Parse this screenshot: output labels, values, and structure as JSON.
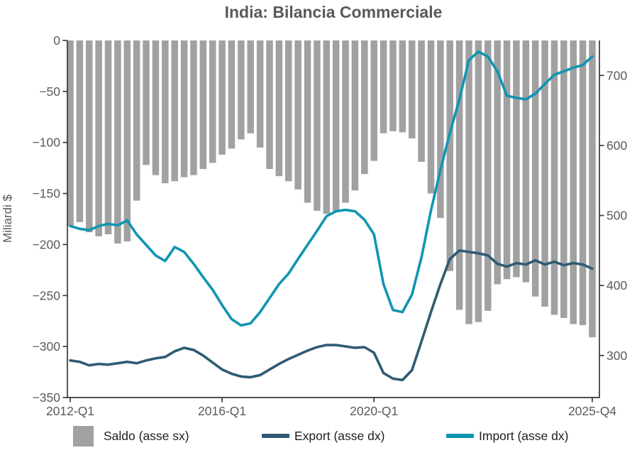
{
  "title": "India: Bilancia Commerciale",
  "colors": {
    "saldo": "#a1a1a1",
    "export": "#2e5b73",
    "import": "#1095b2",
    "axis": "#3a3a3a",
    "tick_text": "#5a5a5a",
    "title_text": "#595959",
    "legend_text": "#1f1f1f"
  },
  "y_left": {
    "label": "Miliardi $",
    "ticks": [
      0,
      -50,
      -100,
      -150,
      -200,
      -250,
      -300,
      -350
    ],
    "range": [
      0,
      -350
    ]
  },
  "y_right": {
    "ticks": [
      700,
      600,
      500,
      400,
      300
    ],
    "range": [
      750,
      240
    ]
  },
  "x_axis": {
    "ticks": [
      {
        "label": "2012-Q1",
        "q": 0
      },
      {
        "label": "2016-Q1",
        "q": 16
      },
      {
        "label": "2020-Q1",
        "q": 32
      },
      {
        "label": "2025-Q4",
        "q": 55
      }
    ]
  },
  "legend": {
    "saldo": "Saldo (asse sx)",
    "export": "Export (asse dx)",
    "import": "Import (asse dx)"
  },
  "chart_data": {
    "type": "bar+line",
    "title": "India: Bilancia Commerciale",
    "ylabel_left": "Miliardi $",
    "ylim_left": [
      -350,
      0
    ],
    "ylim_right": [
      240,
      750
    ],
    "legend_position": "bottom",
    "grid": false,
    "categories": [
      "2012-Q1",
      "2012-Q2",
      "2012-Q3",
      "2012-Q4",
      "2013-Q1",
      "2013-Q2",
      "2013-Q3",
      "2013-Q4",
      "2014-Q1",
      "2014-Q2",
      "2014-Q3",
      "2014-Q4",
      "2015-Q1",
      "2015-Q2",
      "2015-Q3",
      "2015-Q4",
      "2016-Q1",
      "2016-Q2",
      "2016-Q3",
      "2016-Q4",
      "2017-Q1",
      "2017-Q2",
      "2017-Q3",
      "2017-Q4",
      "2018-Q1",
      "2018-Q2",
      "2018-Q3",
      "2018-Q4",
      "2019-Q1",
      "2019-Q2",
      "2019-Q3",
      "2019-Q4",
      "2020-Q1",
      "2020-Q2",
      "2020-Q3",
      "2020-Q4",
      "2021-Q1",
      "2021-Q2",
      "2021-Q3",
      "2021-Q4",
      "2022-Q1",
      "2022-Q2",
      "2022-Q3",
      "2022-Q4",
      "2023-Q1",
      "2023-Q2",
      "2023-Q3",
      "2023-Q4",
      "2024-Q1",
      "2024-Q2",
      "2024-Q3",
      "2024-Q4",
      "2025-Q1",
      "2025-Q2",
      "2025-Q3",
      "2025-Q4"
    ],
    "series": [
      {
        "name": "Saldo (asse sx)",
        "type": "bar",
        "axis": "left",
        "color": "#a1a1a1",
        "values": [
          -182,
          -178,
          -188,
          -192,
          -190,
          -199,
          -197,
          -157,
          -122,
          -132,
          -140,
          -138,
          -134,
          -132,
          -126,
          -120,
          -112,
          -106,
          -97,
          -91,
          -105,
          -126,
          -133,
          -138,
          -146,
          -159,
          -167,
          -170,
          -167,
          -159,
          -147,
          -131,
          -118,
          -91,
          -89,
          -90,
          -96,
          -119,
          -150,
          -174,
          -226,
          -264,
          -278,
          -276,
          -265,
          -239,
          -234,
          -232,
          -237,
          -251,
          -261,
          -269,
          -272,
          -278,
          -279,
          -291
        ]
      },
      {
        "name": "Export (asse dx)",
        "type": "line",
        "axis": "right",
        "color": "#2e5b73",
        "values": [
          293,
          291,
          286,
          288,
          287,
          289,
          291,
          289,
          293,
          296,
          298,
          306,
          311,
          308,
          300,
          290,
          280,
          274,
          270,
          269,
          272,
          280,
          288,
          295,
          301,
          307,
          312,
          315,
          315,
          313,
          311,
          312,
          304,
          275,
          267,
          265,
          279,
          320,
          362,
          402,
          438,
          450,
          448,
          446,
          443,
          431,
          427,
          432,
          430,
          436,
          430,
          434,
          429,
          432,
          430,
          424
        ]
      },
      {
        "name": "Import (asse dx)",
        "type": "line",
        "axis": "right",
        "color": "#1095b2",
        "values": [
          485,
          481,
          479,
          485,
          488,
          486,
          493,
          473,
          458,
          443,
          435,
          455,
          448,
          431,
          412,
          394,
          372,
          352,
          343,
          346,
          362,
          382,
          402,
          417,
          438,
          458,
          478,
          499,
          506,
          508,
          506,
          494,
          473,
          402,
          365,
          362,
          387,
          440,
          507,
          565,
          618,
          666,
          722,
          734,
          727,
          706,
          671,
          668,
          666,
          674,
          688,
          701,
          706,
          711,
          715,
          727
        ]
      }
    ]
  }
}
